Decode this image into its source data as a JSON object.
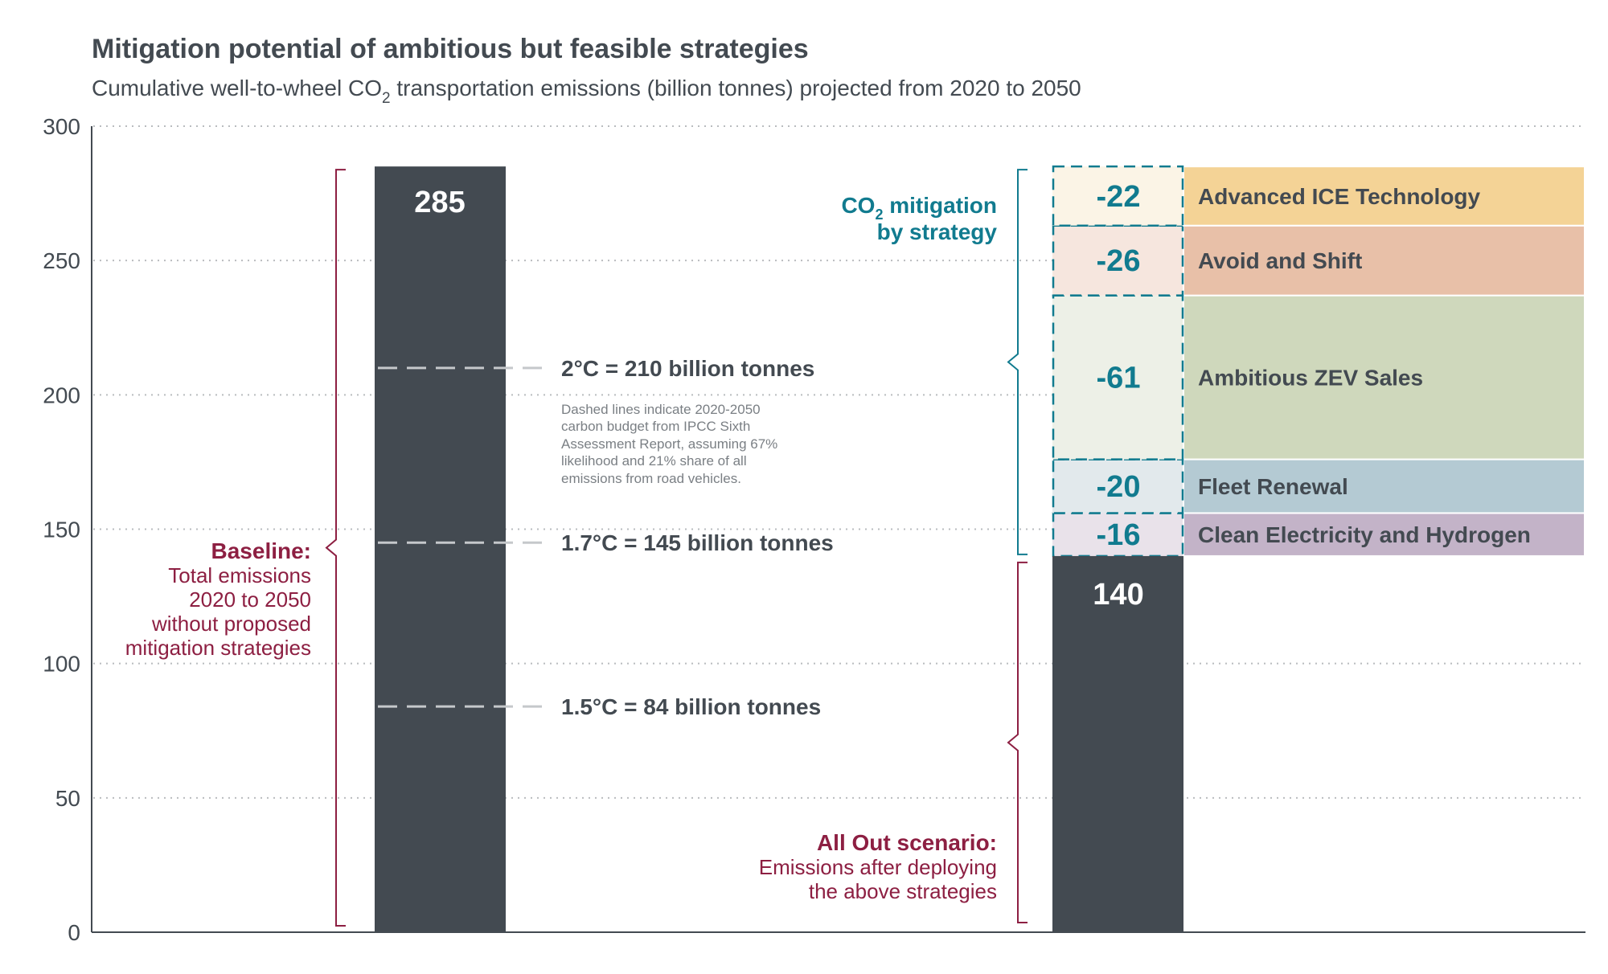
{
  "chart_data": {
    "type": "bar",
    "title": "Mitigation potential of ambitious but feasible strategies",
    "subtitle_before": "Cumulative well-to-wheel CO",
    "subtitle_sub": "2",
    "subtitle_after": " transportation emissions (billion tonnes) projected from 2020 to 2050",
    "ylim": [
      0,
      300
    ],
    "yticks": [
      0,
      50,
      100,
      150,
      200,
      250,
      300
    ],
    "grid": true,
    "baseline": {
      "value": 285,
      "label": "285",
      "annotation_title": "Baseline:",
      "annotation_lines": [
        "Total emissions",
        "2020 to 2050",
        "without proposed",
        "mitigation strategies"
      ]
    },
    "all_out": {
      "value": 140,
      "label": "140",
      "annotation_title": "All Out scenario:",
      "annotation_lines": [
        "Emissions after deploying",
        "the above strategies"
      ]
    },
    "mitigation_label_line1_before": "CO",
    "mitigation_label_line1_sub": "2",
    "mitigation_label_line1_after": " mitigation",
    "mitigation_label_line2": "by strategy",
    "mitigation_segments": [
      {
        "name": "Clean Electricity and Hydrogen",
        "value": -16,
        "label": "-16",
        "color": "#c3b3c8",
        "light": "#e9e2ea"
      },
      {
        "name": "Fleet Renewal",
        "value": -20,
        "label": "-20",
        "color": "#b4cad3",
        "light": "#e2e9ec"
      },
      {
        "name": "Ambitious ZEV Sales",
        "value": -61,
        "label": "-61",
        "color": "#cfd8bc",
        "light": "#edf0e7"
      },
      {
        "name": "Avoid and Shift",
        "value": -26,
        "label": "-26",
        "color": "#e8c0a8",
        "light": "#f6e6de"
      },
      {
        "name": "Advanced ICE Technology",
        "value": -22,
        "label": "-22",
        "color": "#f4d396",
        "light": "#fbf4e6"
      }
    ],
    "budget_lines": [
      {
        "value": 210,
        "label": "2°C = 210 billion tonnes"
      },
      {
        "value": 145,
        "label": "1.7°C = 145 billion tonnes"
      },
      {
        "value": 84,
        "label": "1.5°C = 84 billion tonnes"
      }
    ],
    "note_lines": [
      "Dashed lines indicate 2020-2050",
      "carbon budget from IPCC Sixth",
      "Assessment Report, assuming 67%",
      "likelihood and 21% share of all",
      "emissions from road vehicles."
    ],
    "colors": {
      "bar": "#434a51",
      "text": "#434a51",
      "teal": "#117b8f",
      "crimson": "#8d1f42"
    }
  }
}
